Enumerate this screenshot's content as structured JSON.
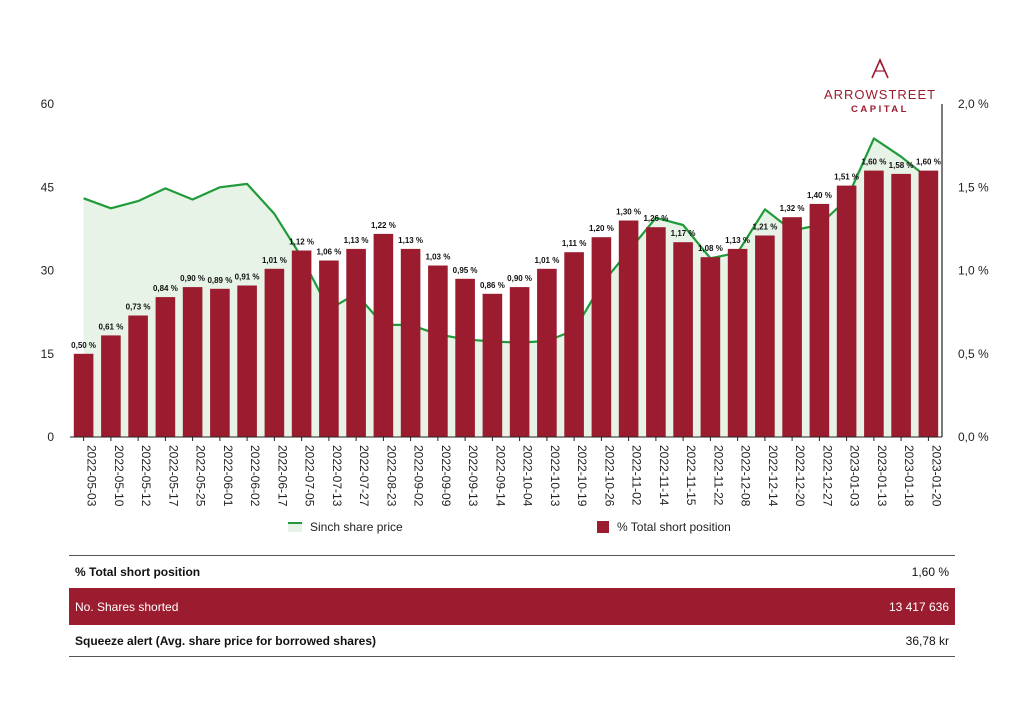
{
  "logo": {
    "name": "ARROWSTREET",
    "sub": "CAPITAL"
  },
  "chart_data": {
    "type": "bar",
    "categories": [
      "2022-05-03",
      "2022-05-10",
      "2022-05-12",
      "2022-05-17",
      "2022-05-25",
      "2022-06-01",
      "2022-06-02",
      "2022-06-17",
      "2022-07-05",
      "2022-07-13",
      "2022-07-27",
      "2022-08-23",
      "2022-09-02",
      "2022-09-09",
      "2022-09-13",
      "2022-09-14",
      "2022-10-04",
      "2022-10-13",
      "2022-10-19",
      "2022-10-26",
      "2022-11-02",
      "2022-11-14",
      "2022-11-15",
      "2022-11-22",
      "2022-12-08",
      "2022-12-14",
      "2022-12-20",
      "2022-12-27",
      "2023-01-03",
      "2023-01-13",
      "2023-01-18",
      "2023-01-20"
    ],
    "series": [
      {
        "name": "Sinch share price",
        "type": "area",
        "axis": "left",
        "color": "#1f9b3a",
        "fill": "#e6f3e6",
        "values": [
          43.0,
          41.2,
          42.5,
          44.8,
          42.8,
          45.0,
          45.6,
          40.2,
          32.4,
          23.0,
          25.8,
          20.2,
          20.2,
          18.5,
          17.6,
          17.2,
          17.0,
          17.3,
          19.2,
          27.5,
          33.5,
          39.5,
          38.2,
          32.2,
          33.2,
          41.0,
          37.2,
          38.2,
          42.8,
          53.8,
          50.5,
          46.6
        ]
      },
      {
        "name": "% Total short position",
        "type": "bar",
        "axis": "right",
        "color": "#9b1c2e",
        "values": [
          0.5,
          0.61,
          0.73,
          0.84,
          0.9,
          0.89,
          0.91,
          1.01,
          1.12,
          1.06,
          1.13,
          1.22,
          1.13,
          1.03,
          0.95,
          0.86,
          0.9,
          1.01,
          1.11,
          1.2,
          1.3,
          1.26,
          1.17,
          1.08,
          1.13,
          1.21,
          1.32,
          1.4,
          1.51,
          1.6,
          1.58,
          1.6
        ],
        "labels": [
          "0,50 %",
          "0,61 %",
          "0,73 %",
          "0,84 %",
          "0,90 %",
          "0,89 %",
          "0,91 %",
          "1,01 %",
          "1,12 %",
          "1,06 %",
          "1,13 %",
          "1,22 %",
          "1,13 %",
          "1,03 %",
          "0,95 %",
          "0,86 %",
          "0,90 %",
          "1,01 %",
          "1,11 %",
          "1,20 %",
          "1,30 %",
          "1,26 %",
          "1,17 %",
          "1,08 %",
          "1,13 %",
          "1,21 %",
          "1,32 %",
          "1,40 %",
          "1,51 %",
          "1,60 %",
          "1,58 %",
          "1,60 %"
        ]
      }
    ],
    "y_left": {
      "ylim": [
        0,
        60
      ],
      "ticks": [
        0,
        15,
        30,
        45,
        60
      ],
      "tick_labels": [
        "0",
        "15",
        "30",
        "45",
        "60"
      ]
    },
    "y_right": {
      "ylim": [
        0,
        2.0
      ],
      "ticks": [
        0,
        0.5,
        1.0,
        1.5,
        2.0
      ],
      "tick_labels": [
        "0,0 %",
        "0,5 %",
        "1,0 %",
        "1,5 %",
        "2,0 %"
      ]
    },
    "grid": false,
    "legend_position": "bottom"
  },
  "legend": {
    "line_label": "Sinch share price",
    "bar_label": "% Total short position"
  },
  "summary": {
    "rows": [
      {
        "label": "% Total short position",
        "value": "1,60 %"
      },
      {
        "label": "No. Shares shorted",
        "value": "13 417 636"
      },
      {
        "label": "Squeeze alert (Avg. share price for borrowed shares)",
        "value": "36,78 kr"
      }
    ]
  },
  "colors": {
    "brand": "#9b1c2e",
    "line": "#1f9b3a",
    "area": "#e6f3e6"
  }
}
